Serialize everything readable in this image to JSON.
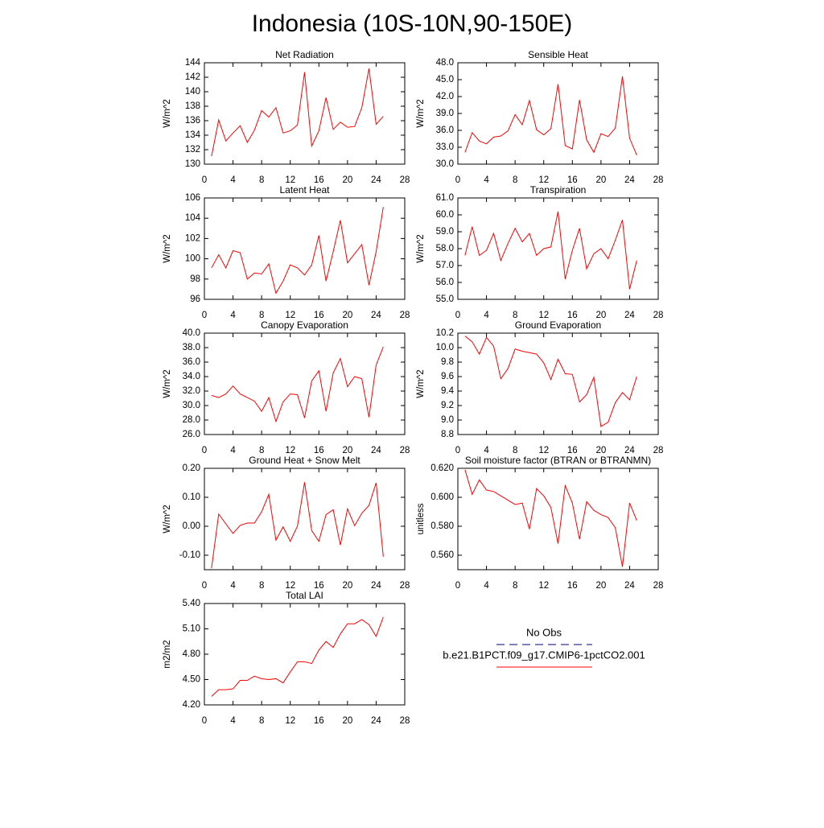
{
  "title": "Indonesia (10S-10N,90-150E)",
  "legend": [
    {
      "name": "No Obs",
      "color": "#000080",
      "dash": true
    },
    {
      "name": "b.e21.B1PCT.f09_g17.CMIP6-1pctCO2.001",
      "color": "#ff0000"
    }
  ],
  "chart_data": [
    {
      "type": "line",
      "title": "Net Radiation",
      "ylabel": "W/m^2",
      "color": "#ff0000",
      "x": [
        1,
        2,
        3,
        4,
        5,
        6,
        7,
        8,
        9,
        10,
        11,
        12,
        13,
        14,
        15,
        16,
        17,
        18,
        19,
        20,
        21,
        22,
        23,
        24,
        25
      ],
      "values": [
        131.1,
        136.1,
        133.2,
        134.3,
        135.3,
        133.0,
        134.7,
        137.4,
        136.5,
        137.8,
        134.3,
        134.6,
        135.4,
        142.7,
        132.5,
        134.6,
        139.2,
        134.8,
        135.8,
        135.1,
        135.2,
        137.8,
        143.2,
        135.5,
        136.6
      ],
      "xlim": [
        0,
        28
      ],
      "xticks": [
        0,
        4,
        8,
        12,
        16,
        20,
        24,
        28
      ],
      "ylim": [
        130,
        144
      ],
      "yticks": [
        130,
        132,
        134,
        136,
        138,
        140,
        142,
        144
      ]
    },
    {
      "type": "line",
      "title": "Sensible Heat",
      "ylabel": "W/m^2",
      "color": "#ff0000",
      "x": [
        1,
        2,
        3,
        4,
        5,
        6,
        7,
        8,
        9,
        10,
        11,
        12,
        13,
        14,
        15,
        16,
        17,
        18,
        19,
        20,
        21,
        22,
        23,
        24,
        25
      ],
      "values": [
        32.1,
        35.6,
        34.1,
        33.6,
        34.8,
        35.0,
        35.9,
        38.8,
        37.0,
        41.3,
        36.1,
        35.2,
        36.3,
        44.2,
        33.3,
        32.7,
        41.4,
        34.3,
        32.1,
        35.4,
        34.9,
        36.4,
        45.6,
        34.6,
        31.6
      ],
      "xlim": [
        0,
        28
      ],
      "xticks": [
        0,
        4,
        8,
        12,
        16,
        20,
        24,
        28
      ],
      "ylim": [
        30,
        48
      ],
      "yticks": [
        {
          "value": 30,
          "label": "30.0"
        },
        {
          "value": 33,
          "label": "33.0"
        },
        {
          "value": 36,
          "label": "36.0"
        },
        {
          "value": 39,
          "label": "39.0"
        },
        {
          "value": 42,
          "label": "42.0"
        },
        {
          "value": 45,
          "label": "45.0"
        },
        {
          "value": 48,
          "label": "48.0"
        }
      ]
    },
    {
      "type": "line",
      "title": "Latent Heat",
      "ylabel": "W/m^2",
      "color": "#ff0000",
      "x": [
        1,
        2,
        3,
        4,
        5,
        6,
        7,
        8,
        9,
        10,
        11,
        12,
        13,
        14,
        15,
        16,
        17,
        18,
        19,
        20,
        21,
        22,
        23,
        24,
        25
      ],
      "values": [
        99.1,
        100.4,
        99.1,
        100.8,
        100.6,
        98.0,
        98.6,
        98.5,
        99.5,
        96.6,
        97.8,
        99.4,
        99.1,
        98.4,
        99.4,
        102.3,
        97.8,
        100.7,
        103.8,
        99.6,
        100.5,
        101.4,
        97.4,
        100.7,
        105.1
      ],
      "xlim": [
        0,
        28
      ],
      "xticks": [
        0,
        4,
        8,
        12,
        16,
        20,
        24,
        28
      ],
      "ylim": [
        96,
        106
      ],
      "yticks": [
        96,
        98,
        100,
        102,
        104,
        106
      ]
    },
    {
      "type": "line",
      "title": "Transpiration",
      "ylabel": "W/m^2",
      "color": "#ff0000",
      "x": [
        1,
        2,
        3,
        4,
        5,
        6,
        7,
        8,
        9,
        10,
        11,
        12,
        13,
        14,
        15,
        16,
        17,
        18,
        19,
        20,
        21,
        22,
        23,
        24,
        25
      ],
      "values": [
        57.6,
        59.3,
        57.6,
        57.9,
        58.9,
        57.3,
        58.3,
        59.2,
        58.4,
        58.9,
        57.6,
        58.0,
        58.1,
        60.2,
        56.2,
        57.9,
        59.2,
        56.8,
        57.7,
        58.0,
        57.4,
        58.5,
        59.7,
        55.6,
        57.3
      ],
      "xlim": [
        0,
        28
      ],
      "xticks": [
        0,
        4,
        8,
        12,
        16,
        20,
        24,
        28
      ],
      "ylim": [
        55,
        61
      ],
      "yticks": [
        {
          "value": 55,
          "label": "55.0"
        },
        {
          "value": 56,
          "label": "56.0"
        },
        {
          "value": 57,
          "label": "57.0"
        },
        {
          "value": 58,
          "label": "58.0"
        },
        {
          "value": 59,
          "label": "59.0"
        },
        {
          "value": 60,
          "label": "60.0"
        },
        {
          "value": 61,
          "label": "61.0"
        }
      ]
    },
    {
      "type": "line",
      "title": "Canopy Evaporation",
      "ylabel": "W/m^2",
      "color": "#ff0000",
      "x": [
        1,
        2,
        3,
        4,
        5,
        6,
        7,
        8,
        9,
        10,
        11,
        12,
        13,
        14,
        15,
        16,
        17,
        18,
        19,
        20,
        21,
        22,
        23,
        24,
        25
      ],
      "values": [
        31.4,
        31.1,
        31.6,
        32.7,
        31.6,
        31.1,
        30.6,
        29.2,
        31.1,
        27.8,
        30.5,
        31.6,
        31.5,
        28.3,
        33.4,
        34.8,
        29.2,
        34.5,
        36.5,
        32.6,
        34.0,
        33.7,
        28.4,
        35.6,
        38.1
      ],
      "xlim": [
        0,
        28
      ],
      "xticks": [
        0,
        4,
        8,
        12,
        16,
        20,
        24,
        28
      ],
      "ylim": [
        26,
        40
      ],
      "yticks": [
        {
          "value": 26,
          "label": "26.0"
        },
        {
          "value": 28,
          "label": "28.0"
        },
        {
          "value": 30,
          "label": "30.0"
        },
        {
          "value": 32,
          "label": "32.0"
        },
        {
          "value": 34,
          "label": "34.0"
        },
        {
          "value": 36,
          "label": "36.0"
        },
        {
          "value": 38,
          "label": "38.0"
        },
        {
          "value": 40,
          "label": "40.0"
        }
      ]
    },
    {
      "type": "line",
      "title": "Ground Evaporation",
      "ylabel": "W/m^2",
      "color": "#ff0000",
      "x": [
        1,
        2,
        3,
        4,
        5,
        6,
        7,
        8,
        9,
        10,
        11,
        12,
        13,
        14,
        15,
        16,
        17,
        18,
        19,
        20,
        21,
        22,
        23,
        24,
        25
      ],
      "values": [
        10.16,
        10.08,
        9.91,
        10.14,
        10.02,
        9.57,
        9.71,
        9.98,
        9.95,
        9.93,
        9.91,
        9.79,
        9.56,
        9.84,
        9.64,
        9.63,
        9.25,
        9.35,
        9.59,
        8.91,
        8.97,
        9.24,
        9.38,
        9.28,
        9.6
      ],
      "xlim": [
        0,
        28
      ],
      "xticks": [
        0,
        4,
        8,
        12,
        16,
        20,
        24,
        28
      ],
      "ylim": [
        8.8,
        10.2
      ],
      "yticks": [
        8.8,
        {
          "value": 9,
          "label": "9.0"
        },
        9.2,
        9.4,
        9.6,
        9.8,
        {
          "value": 10,
          "label": "10.0"
        },
        10.2
      ]
    },
    {
      "type": "line",
      "title": "Ground Heat + Snow Melt",
      "ylabel": "W/m^2",
      "color": "#ff0000",
      "x": [
        1,
        2,
        3,
        4,
        5,
        6,
        7,
        8,
        9,
        10,
        11,
        12,
        13,
        14,
        15,
        16,
        17,
        18,
        19,
        20,
        21,
        22,
        23,
        24,
        25
      ],
      "values": [
        -0.145,
        0.042,
        0.008,
        -0.025,
        0.003,
        0.011,
        0.011,
        0.05,
        0.11,
        -0.048,
        -0.002,
        -0.052,
        0.0,
        0.152,
        -0.015,
        -0.052,
        0.04,
        0.057,
        -0.065,
        0.06,
        0.002,
        0.045,
        0.072,
        0.15,
        -0.105
      ],
      "xlim": [
        0,
        28
      ],
      "xticks": [
        0,
        4,
        8,
        12,
        16,
        20,
        24,
        28
      ],
      "ylim": [
        -0.15,
        0.2
      ],
      "yticks": [
        {
          "value": -0.1,
          "label": "-0.10"
        },
        {
          "value": 0,
          "label": "0.00"
        },
        {
          "value": 0.1,
          "label": "0.10"
        },
        {
          "value": 0.2,
          "label": "0.20"
        }
      ]
    },
    {
      "type": "line",
      "title": "Soil moisture factor (BTRAN or BTRANMN)",
      "ylabel": "unitless",
      "color": "#ff0000",
      "x": [
        1,
        2,
        3,
        4,
        5,
        6,
        7,
        8,
        9,
        10,
        11,
        12,
        13,
        14,
        15,
        16,
        17,
        18,
        19,
        20,
        21,
        22,
        23,
        24,
        25
      ],
      "values": [
        0.619,
        0.602,
        0.612,
        0.605,
        0.604,
        0.601,
        0.598,
        0.595,
        0.596,
        0.578,
        0.606,
        0.601,
        0.593,
        0.568,
        0.608,
        0.596,
        0.571,
        0.597,
        0.591,
        0.588,
        0.586,
        0.579,
        0.552,
        0.596,
        0.584
      ],
      "xlim": [
        0,
        28
      ],
      "xticks": [
        0,
        4,
        8,
        12,
        16,
        20,
        24,
        28
      ],
      "ylim": [
        0.55,
        0.62
      ],
      "yticks": [
        {
          "value": 0.56,
          "label": "0.560"
        },
        {
          "value": 0.58,
          "label": "0.580"
        },
        {
          "value": 0.6,
          "label": "0.600"
        },
        {
          "value": 0.62,
          "label": "0.620"
        }
      ]
    },
    {
      "type": "line",
      "title": "Total LAI",
      "ylabel": "m2/m2",
      "color": "#ff0000",
      "x": [
        1,
        2,
        3,
        4,
        5,
        6,
        7,
        8,
        9,
        10,
        11,
        12,
        13,
        14,
        15,
        16,
        17,
        18,
        19,
        20,
        21,
        22,
        23,
        24,
        25
      ],
      "values": [
        4.3,
        4.38,
        4.38,
        4.39,
        4.49,
        4.49,
        4.54,
        4.51,
        4.5,
        4.51,
        4.46,
        4.59,
        4.71,
        4.71,
        4.69,
        4.85,
        4.95,
        4.88,
        5.04,
        5.16,
        5.16,
        5.21,
        5.15,
        5.01,
        5.24
      ],
      "xlim": [
        0,
        28
      ],
      "xticks": [
        0,
        4,
        8,
        12,
        16,
        20,
        24,
        28
      ],
      "ylim": [
        4.2,
        5.4
      ],
      "yticks": [
        {
          "value": 4.2,
          "label": "4.20"
        },
        {
          "value": 4.5,
          "label": "4.50"
        },
        {
          "value": 4.8,
          "label": "4.80"
        },
        {
          "value": 5.1,
          "label": "5.10"
        },
        {
          "value": 5.4,
          "label": "5.40"
        }
      ]
    }
  ]
}
